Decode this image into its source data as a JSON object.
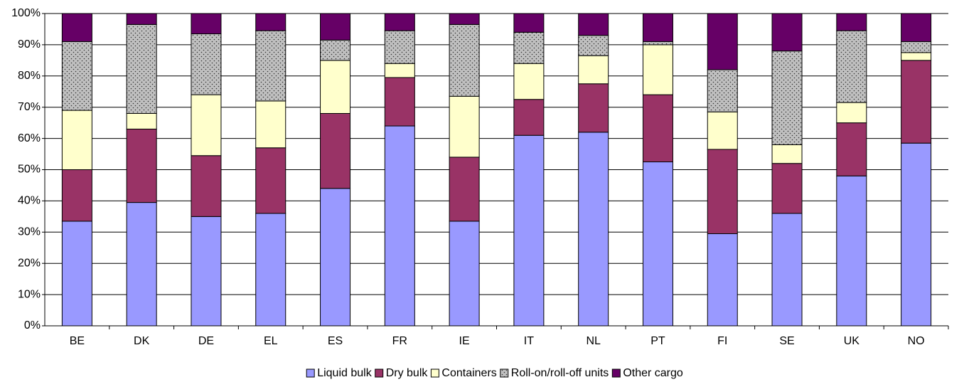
{
  "chart_data": {
    "type": "stacked_bar",
    "categories": [
      "BE",
      "DK",
      "DE",
      "EL",
      "ES",
      "FR",
      "IE",
      "IT",
      "NL",
      "PT",
      "FI",
      "SE",
      "UK",
      "NO"
    ],
    "series": [
      {
        "name": "Liquid bulk",
        "color": "#9999ff",
        "values": [
          33.5,
          39.5,
          35,
          36,
          44,
          64,
          33.5,
          61,
          62,
          52.5,
          29.5,
          36,
          48,
          58.5
        ]
      },
      {
        "name": "Dry bulk",
        "color": "#993366",
        "values": [
          16.5,
          23.5,
          19.5,
          21,
          24,
          15.5,
          20.5,
          11.5,
          15.5,
          21.5,
          27,
          16,
          17,
          26.5
        ]
      },
      {
        "name": "Containers",
        "color": "#ffffcc",
        "values": [
          19,
          5,
          19.5,
          15,
          17,
          4.5,
          19.5,
          11.5,
          9,
          16,
          12,
          6,
          6.5,
          2.5
        ]
      },
      {
        "name": "Roll-on/roll-off units",
        "color": "#c0c0c0",
        "pattern": "dots",
        "values": [
          22,
          28.5,
          19.5,
          22.5,
          6.5,
          10.5,
          23,
          10,
          6.5,
          1,
          13.5,
          30,
          23,
          3.5
        ]
      },
      {
        "name": "Other cargo",
        "color": "#660066",
        "values": [
          9,
          3.5,
          6.5,
          5.5,
          8.5,
          5.5,
          3.5,
          6,
          7,
          9,
          18,
          12,
          5.5,
          9
        ]
      }
    ],
    "ylim": [
      0,
      100
    ],
    "yticks": [
      {
        "value": 0,
        "label": "0%"
      },
      {
        "value": 10,
        "label": "10%"
      },
      {
        "value": 20,
        "label": "20%"
      },
      {
        "value": 30,
        "label": "30%"
      },
      {
        "value": 40,
        "label": "40%"
      },
      {
        "value": 50,
        "label": "50%"
      },
      {
        "value": 60,
        "label": "60%"
      },
      {
        "value": 70,
        "label": "70%"
      },
      {
        "value": 80,
        "label": "80%"
      },
      {
        "value": 90,
        "label": "90%"
      },
      {
        "value": 100,
        "label": "100%"
      }
    ],
    "grid": true,
    "legend": "bottom"
  }
}
